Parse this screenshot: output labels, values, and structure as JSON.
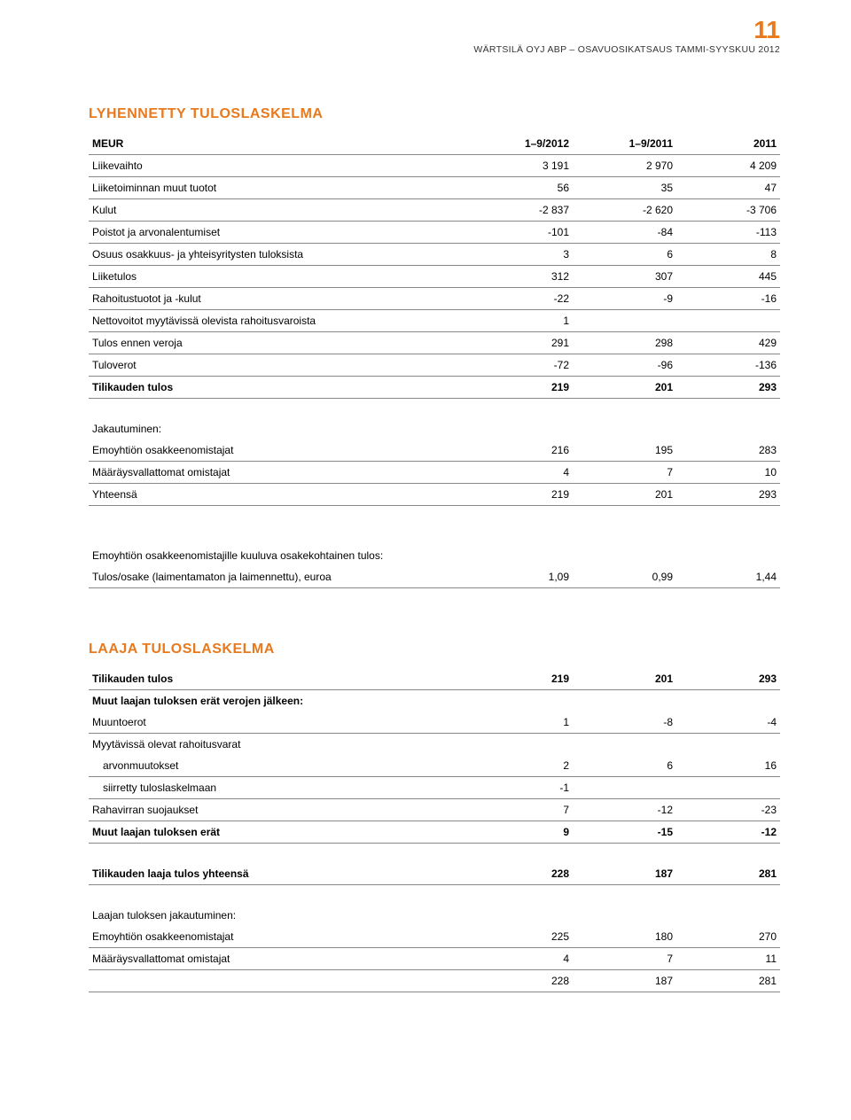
{
  "pageNumber": "11",
  "pageSubtitle": "WÄRTSILÄ OYJ ABP – OSAVUOSIKATSAUS TAMMI-SYYSKUU 2012",
  "colors": {
    "accent": "#e8791d",
    "text": "#000000",
    "border": "#888888",
    "background": "#ffffff"
  },
  "section1": {
    "title": "LYHENNETTY TULOSLASKELMA",
    "headers": [
      "MEUR",
      "1–9/2012",
      "1–9/2011",
      "2011"
    ],
    "rows": [
      {
        "label": "Liikevaihto",
        "v": [
          "3 191",
          "2 970",
          "4 209"
        ]
      },
      {
        "label": "Liiketoiminnan muut tuotot",
        "v": [
          "56",
          "35",
          "47"
        ]
      },
      {
        "label": "Kulut",
        "v": [
          "-2 837",
          "-2 620",
          "-3 706"
        ]
      },
      {
        "label": "Poistot ja arvonalentumiset",
        "v": [
          "-101",
          "-84",
          "-113"
        ]
      },
      {
        "label": "Osuus osakkuus- ja yhteisyritysten tuloksista",
        "v": [
          "3",
          "6",
          "8"
        ]
      },
      {
        "label": "Liiketulos",
        "v": [
          "312",
          "307",
          "445"
        ]
      },
      {
        "label": "Rahoitustuotot ja -kulut",
        "v": [
          "-22",
          "-9",
          "-16"
        ]
      },
      {
        "label": "Nettovoitot myytävissä olevista rahoitusvaroista",
        "v": [
          "1",
          "",
          ""
        ]
      },
      {
        "label": "Tulos ennen veroja",
        "v": [
          "291",
          "298",
          "429"
        ]
      },
      {
        "label": "Tuloverot",
        "v": [
          "-72",
          "-96",
          "-136"
        ]
      },
      {
        "label": "Tilikauden tulos",
        "v": [
          "219",
          "201",
          "293"
        ],
        "bold": true
      }
    ],
    "jakHeader": "Jakautuminen:",
    "jak": [
      {
        "label": "Emoyhtiön osakkeenomistajat",
        "v": [
          "216",
          "195",
          "283"
        ]
      },
      {
        "label": "Määräysvallattomat omistajat",
        "v": [
          "4",
          "7",
          "10"
        ]
      },
      {
        "label": "Yhteensä",
        "v": [
          "219",
          "201",
          "293"
        ]
      }
    ],
    "epsHeader": "Emoyhtiön osakkeenomistajille kuuluva osakekohtainen tulos:",
    "eps": {
      "label": "Tulos/osake (laimentamaton ja laimennettu), euroa",
      "v": [
        "1,09",
        "0,99",
        "1,44"
      ]
    }
  },
  "section2": {
    "title": "LAAJA TULOSLASKELMA",
    "rows": [
      {
        "label": "Tilikauden tulos",
        "v": [
          "219",
          "201",
          "293"
        ],
        "bold": true
      },
      {
        "label": "Muut laajan tuloksen erät verojen jälkeen:",
        "v": [
          "",
          "",
          ""
        ],
        "bold": true,
        "noBorder": true
      },
      {
        "label": "Muuntoerot",
        "v": [
          "1",
          "-8",
          "-4"
        ]
      },
      {
        "label": "Myytävissä olevat rahoitusvarat",
        "v": [
          "",
          "",
          ""
        ],
        "noBorder": true
      },
      {
        "label": "arvonmuutokset",
        "v": [
          "2",
          "6",
          "16"
        ],
        "indent": true
      },
      {
        "label": "siirretty tuloslaskelmaan",
        "v": [
          "-1",
          "",
          ""
        ],
        "indent": true
      },
      {
        "label": "Rahavirran suojaukset",
        "v": [
          "7",
          "-12",
          "-23"
        ]
      },
      {
        "label": "Muut laajan tuloksen erät",
        "v": [
          "9",
          "-15",
          "-12"
        ],
        "bold": true
      }
    ],
    "total": {
      "label": "Tilikauden laaja tulos yhteensä",
      "v": [
        "228",
        "187",
        "281"
      ],
      "bold": true
    },
    "jakHeader": "Laajan tuloksen jakautuminen:",
    "jak": [
      {
        "label": "Emoyhtiön osakkeenomistajat",
        "v": [
          "225",
          "180",
          "270"
        ]
      },
      {
        "label": "Määräysvallattomat omistajat",
        "v": [
          "4",
          "7",
          "11"
        ]
      },
      {
        "label": "",
        "v": [
          "228",
          "187",
          "281"
        ]
      }
    ]
  }
}
